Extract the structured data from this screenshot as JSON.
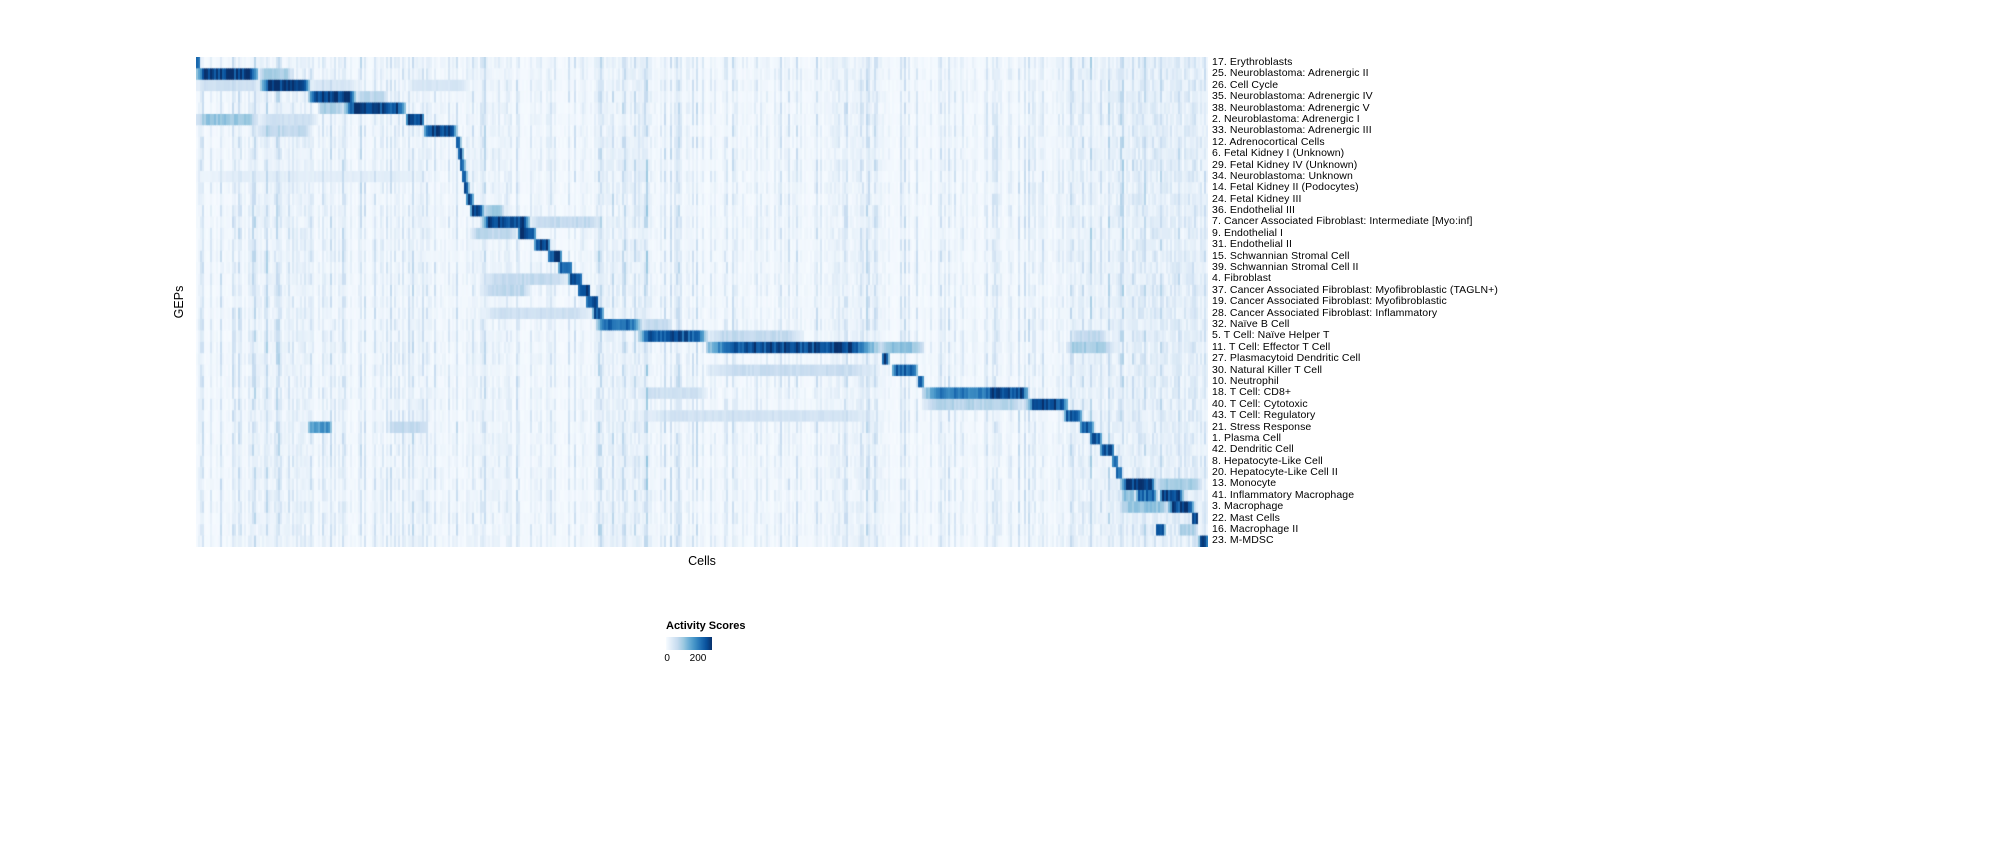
{
  "chart_data": {
    "type": "heatmap",
    "title": "",
    "xlabel": "Cells",
    "ylabel": "GEPs",
    "legend": {
      "title": "Activity Scores",
      "min": 0,
      "max": 200,
      "tick_labels": [
        "0",
        "200"
      ]
    },
    "colormap": [
      "#f7fbff",
      "#deebf7",
      "#c6dbef",
      "#9ecae1",
      "#6baed6",
      "#4292c6",
      "#2171b5",
      "#08519c",
      "#08306b"
    ],
    "value_cap": 210,
    "global_streaks": [
      {
        "s": 0.05,
        "e": 0.115,
        "v": 12
      },
      {
        "s": 0.21,
        "e": 0.232,
        "v": 15
      },
      {
        "s": 0.27,
        "e": 0.31,
        "v": 12
      },
      {
        "s": 0.395,
        "e": 0.45,
        "v": 18
      },
      {
        "s": 0.62,
        "e": 0.68,
        "v": 10
      },
      {
        "s": 0.86,
        "e": 1.0,
        "v": 20
      }
    ],
    "rows": [
      {
        "label": "17. Erythroblasts",
        "blocks": [
          {
            "s": 0.0,
            "e": 0.004,
            "v": 190
          }
        ]
      },
      {
        "label": "25. Neuroblastoma: Adrenergic II",
        "blocks": [
          {
            "s": 0.0,
            "e": 0.062,
            "v": 205
          },
          {
            "s": 0.062,
            "e": 0.095,
            "v": 70
          }
        ]
      },
      {
        "label": "26. Cell Cycle",
        "blocks": [
          {
            "s": 0.064,
            "e": 0.113,
            "v": 205
          },
          {
            "s": 0.0,
            "e": 0.064,
            "v": 45
          },
          {
            "s": 0.113,
            "e": 0.16,
            "v": 35
          },
          {
            "s": 0.21,
            "e": 0.27,
            "v": 35
          }
        ]
      },
      {
        "label": "35. Neuroblastoma: Adrenergic IV",
        "blocks": [
          {
            "s": 0.111,
            "e": 0.158,
            "v": 205
          },
          {
            "s": 0.158,
            "e": 0.19,
            "v": 60
          }
        ]
      },
      {
        "label": "38. Neuroblastoma: Adrenergic V",
        "blocks": [
          {
            "s": 0.146,
            "e": 0.208,
            "v": 195
          },
          {
            "s": 0.12,
            "e": 0.146,
            "v": 70
          }
        ]
      },
      {
        "label": "2. Neuroblastoma: Adrenergic I",
        "blocks": [
          {
            "s": 0.0,
            "e": 0.062,
            "v": 85
          },
          {
            "s": 0.207,
            "e": 0.226,
            "v": 205
          },
          {
            "s": 0.062,
            "e": 0.12,
            "v": 45
          }
        ]
      },
      {
        "label": "33. Neuroblastoma: Adrenergic III",
        "blocks": [
          {
            "s": 0.225,
            "e": 0.258,
            "v": 205
          },
          {
            "s": 0.06,
            "e": 0.115,
            "v": 55
          }
        ]
      },
      {
        "label": "12. Adrenocortical Cells",
        "blocks": [
          {
            "s": 0.257,
            "e": 0.262,
            "v": 190
          }
        ]
      },
      {
        "label": "6. Fetal Kidney I (Unknown)",
        "blocks": [
          {
            "s": 0.259,
            "e": 0.264,
            "v": 180
          }
        ]
      },
      {
        "label": "29. Fetal Kidney IV (Unknown)",
        "blocks": [
          {
            "s": 0.261,
            "e": 0.266,
            "v": 170
          }
        ]
      },
      {
        "label": "34. Neuroblastoma: Unknown",
        "blocks": [
          {
            "s": 0.263,
            "e": 0.268,
            "v": 160
          },
          {
            "s": 0.0,
            "e": 0.23,
            "v": 22
          }
        ]
      },
      {
        "label": "14. Fetal Kidney II (Podocytes)",
        "blocks": [
          {
            "s": 0.265,
            "e": 0.27,
            "v": 175
          }
        ]
      },
      {
        "label": "24. Fetal Kidney III",
        "blocks": [
          {
            "s": 0.267,
            "e": 0.274,
            "v": 185
          }
        ]
      },
      {
        "label": "36. Endothelial III",
        "blocks": [
          {
            "s": 0.271,
            "e": 0.284,
            "v": 195
          },
          {
            "s": 0.284,
            "e": 0.305,
            "v": 75
          }
        ]
      },
      {
        "label": "7. Cancer Associated Fibroblast: Intermediate [Myo:inf]",
        "blocks": [
          {
            "s": 0.283,
            "e": 0.33,
            "v": 205
          },
          {
            "s": 0.33,
            "e": 0.4,
            "v": 55
          }
        ]
      },
      {
        "label": "9. Endothelial I",
        "blocks": [
          {
            "s": 0.318,
            "e": 0.336,
            "v": 205
          },
          {
            "s": 0.271,
            "e": 0.318,
            "v": 60
          }
        ]
      },
      {
        "label": "31. Endothelial II",
        "blocks": [
          {
            "s": 0.334,
            "e": 0.35,
            "v": 195
          }
        ]
      },
      {
        "label": "15. Schwannian Stromal Cell",
        "blocks": [
          {
            "s": 0.347,
            "e": 0.362,
            "v": 195
          }
        ]
      },
      {
        "label": "39. Schwannian Stromal Cell II",
        "blocks": [
          {
            "s": 0.358,
            "e": 0.372,
            "v": 185
          }
        ]
      },
      {
        "label": "4. Fibroblast",
        "blocks": [
          {
            "s": 0.368,
            "e": 0.382,
            "v": 190
          },
          {
            "s": 0.283,
            "e": 0.368,
            "v": 55
          }
        ]
      },
      {
        "label": "37. Cancer Associated Fibroblast: Myofibroblastic (TAGLN+)",
        "blocks": [
          {
            "s": 0.377,
            "e": 0.39,
            "v": 195
          },
          {
            "s": 0.283,
            "e": 0.33,
            "v": 60
          }
        ]
      },
      {
        "label": "19. Cancer Associated Fibroblast: Myofibroblastic",
        "blocks": [
          {
            "s": 0.385,
            "e": 0.398,
            "v": 205
          }
        ]
      },
      {
        "label": "28. Cancer Associated Fibroblast: Inflammatory",
        "blocks": [
          {
            "s": 0.392,
            "e": 0.403,
            "v": 185
          },
          {
            "s": 0.283,
            "e": 0.392,
            "v": 45
          }
        ]
      },
      {
        "label": "32. Naïve B Cell",
        "blocks": [
          {
            "s": 0.396,
            "e": 0.44,
            "v": 165
          },
          {
            "s": 0.44,
            "e": 0.47,
            "v": 55
          }
        ]
      },
      {
        "label": "5. T Cell: Naïve Helper T",
        "blocks": [
          {
            "s": 0.437,
            "e": 0.505,
            "v": 185
          },
          {
            "s": 0.505,
            "e": 0.6,
            "v": 55
          },
          {
            "s": 0.865,
            "e": 0.9,
            "v": 55
          }
        ]
      },
      {
        "label": "11. T Cell: Effector T Cell",
        "blocks": [
          {
            "s": 0.503,
            "e": 0.675,
            "v": 195
          },
          {
            "s": 0.675,
            "e": 0.72,
            "v": 85
          },
          {
            "s": 0.86,
            "e": 0.905,
            "v": 75
          }
        ]
      },
      {
        "label": "27. Plasmacytoid Dendritic Cell",
        "blocks": [
          {
            "s": 0.678,
            "e": 0.685,
            "v": 205
          }
        ]
      },
      {
        "label": "30. Natural Killer T Cell",
        "blocks": [
          {
            "s": 0.687,
            "e": 0.714,
            "v": 175
          },
          {
            "s": 0.503,
            "e": 0.675,
            "v": 50
          }
        ]
      },
      {
        "label": "10. Neutrophil",
        "blocks": [
          {
            "s": 0.713,
            "e": 0.719,
            "v": 160
          }
        ]
      },
      {
        "label": "18. T Cell: CD8+",
        "blocks": [
          {
            "s": 0.718,
            "e": 0.823,
            "v": 155
          },
          {
            "s": 0.78,
            "e": 0.823,
            "v": 195
          },
          {
            "s": 0.437,
            "e": 0.505,
            "v": 45
          }
        ]
      },
      {
        "label": "40. T Cell: Cytotoxic",
        "blocks": [
          {
            "s": 0.821,
            "e": 0.862,
            "v": 195
          },
          {
            "s": 0.718,
            "e": 0.821,
            "v": 65
          }
        ]
      },
      {
        "label": "43. T Cell: Regulatory",
        "blocks": [
          {
            "s": 0.858,
            "e": 0.876,
            "v": 180
          },
          {
            "s": 0.437,
            "e": 0.675,
            "v": 40
          }
        ]
      },
      {
        "label": "21. Stress Response",
        "blocks": [
          {
            "s": 0.873,
            "e": 0.887,
            "v": 180
          },
          {
            "s": 0.11,
            "e": 0.135,
            "v": 130
          },
          {
            "s": 0.19,
            "e": 0.23,
            "v": 55
          }
        ]
      },
      {
        "label": "1. Plasma Cell",
        "blocks": [
          {
            "s": 0.883,
            "e": 0.895,
            "v": 190
          }
        ]
      },
      {
        "label": "42. Dendritic Cell",
        "blocks": [
          {
            "s": 0.893,
            "e": 0.908,
            "v": 185
          }
        ]
      },
      {
        "label": "8. Hepatocyte-Like Cell",
        "blocks": [
          {
            "s": 0.905,
            "e": 0.912,
            "v": 165
          }
        ]
      },
      {
        "label": "20. Hepatocyte-Like Cell II",
        "blocks": [
          {
            "s": 0.909,
            "e": 0.916,
            "v": 155
          }
        ]
      },
      {
        "label": "13. Monocyte",
        "blocks": [
          {
            "s": 0.914,
            "e": 0.948,
            "v": 205
          },
          {
            "s": 0.948,
            "e": 0.995,
            "v": 75
          }
        ]
      },
      {
        "label": "41. Inflammatory Macrophage",
        "blocks": [
          {
            "s": 0.928,
            "e": 0.95,
            "v": 165
          },
          {
            "s": 0.952,
            "e": 0.976,
            "v": 205
          },
          {
            "s": 0.914,
            "e": 0.928,
            "v": 90
          }
        ]
      },
      {
        "label": "3. Macrophage",
        "blocks": [
          {
            "s": 0.961,
            "e": 0.986,
            "v": 195
          },
          {
            "s": 0.914,
            "e": 0.961,
            "v": 85
          }
        ]
      },
      {
        "label": "22. Mast Cells",
        "blocks": [
          {
            "s": 0.984,
            "e": 0.991,
            "v": 205
          }
        ]
      },
      {
        "label": "16. Macrophage II",
        "blocks": [
          {
            "s": 0.948,
            "e": 0.958,
            "v": 190
          },
          {
            "s": 0.97,
            "e": 0.99,
            "v": 70
          }
        ]
      },
      {
        "label": "23. M-MDSC",
        "blocks": [
          {
            "s": 0.991,
            "e": 1.0,
            "v": 205
          }
        ]
      }
    ]
  }
}
